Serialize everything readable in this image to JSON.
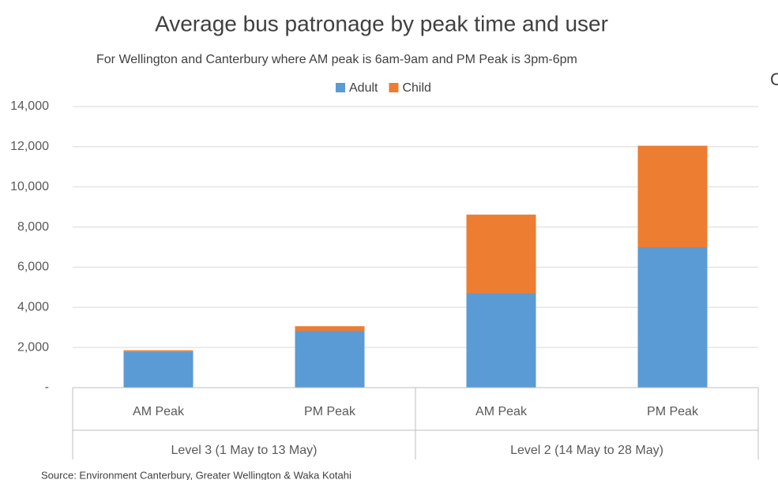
{
  "chart_data": {
    "type": "stacked_bar",
    "title": "Average bus patronage by peak time and user",
    "subtitle": "For Wellington and Canterbury where AM peak is 6am-9am and PM Peak is 3pm-6pm",
    "categories": [
      "AM Peak",
      "PM Peak",
      "AM Peak",
      "PM Peak"
    ],
    "groups": [
      {
        "label": "Level 3 (1 May to 13 May)",
        "span": 2
      },
      {
        "label": "Level 2 (14 May to 28 May)",
        "span": 2
      }
    ],
    "series": [
      {
        "name": "Adult",
        "color": "#5b9bd5",
        "values": [
          1800,
          2830,
          4700,
          7000
        ]
      },
      {
        "name": "Child",
        "color": "#ed7d31",
        "values": [
          60,
          230,
          3920,
          5050
        ]
      }
    ],
    "ylim": [
      0,
      14000
    ],
    "yticks": [
      {
        "value": 0,
        "label": "-"
      },
      {
        "value": 2000,
        "label": "2,000"
      },
      {
        "value": 4000,
        "label": "4,000"
      },
      {
        "value": 6000,
        "label": "6,000"
      },
      {
        "value": 8000,
        "label": "8,000"
      },
      {
        "value": 10000,
        "label": "10,000"
      },
      {
        "value": 12000,
        "label": "12,000"
      },
      {
        "value": 14000,
        "label": "14,000"
      }
    ],
    "grid": true,
    "legend": "top",
    "source": "Source: Environment Canterbury, Greater Wellington & Waka Kotahi",
    "side_text": "C"
  }
}
